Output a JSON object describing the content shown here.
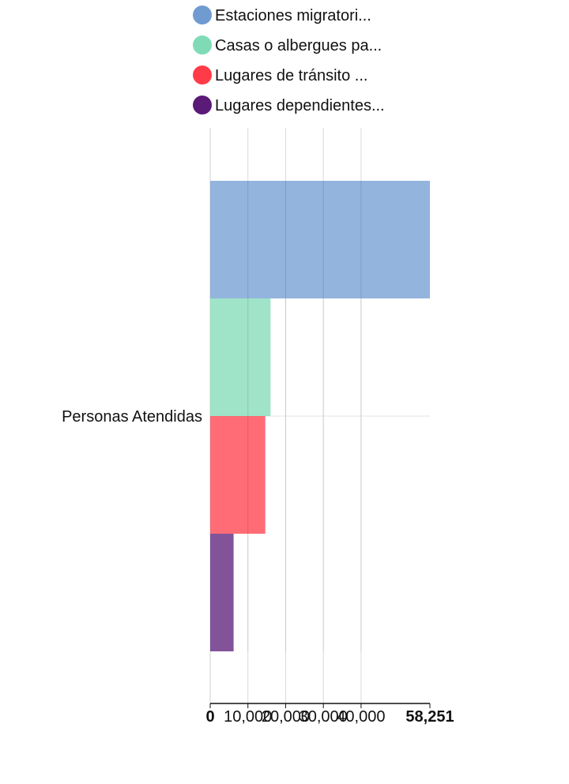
{
  "chart_data": {
    "type": "bar",
    "orientation": "horizontal",
    "categories": [
      "Personas Atendidas"
    ],
    "series": [
      {
        "name": "Estaciones migratori...",
        "values": [
          58251
        ],
        "color": "#6f9bd1"
      },
      {
        "name": "Casas o albergues pa...",
        "values": [
          16000
        ],
        "color": "#7fdbb6"
      },
      {
        "name": "Lugares de tránsito ...",
        "values": [
          14600
        ],
        "color": "#ff3b47"
      },
      {
        "name": "Lugares dependientes...",
        "values": [
          6200
        ],
        "color": "#5a1a78"
      }
    ],
    "xlim": [
      0,
      58251
    ],
    "x_ticks": [
      "0",
      "10,000",
      "20,000",
      "30,000",
      "40,000",
      "58,251"
    ],
    "x_tick_values": [
      0,
      10000,
      20000,
      30000,
      40000,
      58251
    ],
    "bold_ticks": [
      "0",
      "58,251"
    ],
    "grid": true,
    "legend_position": "top"
  }
}
